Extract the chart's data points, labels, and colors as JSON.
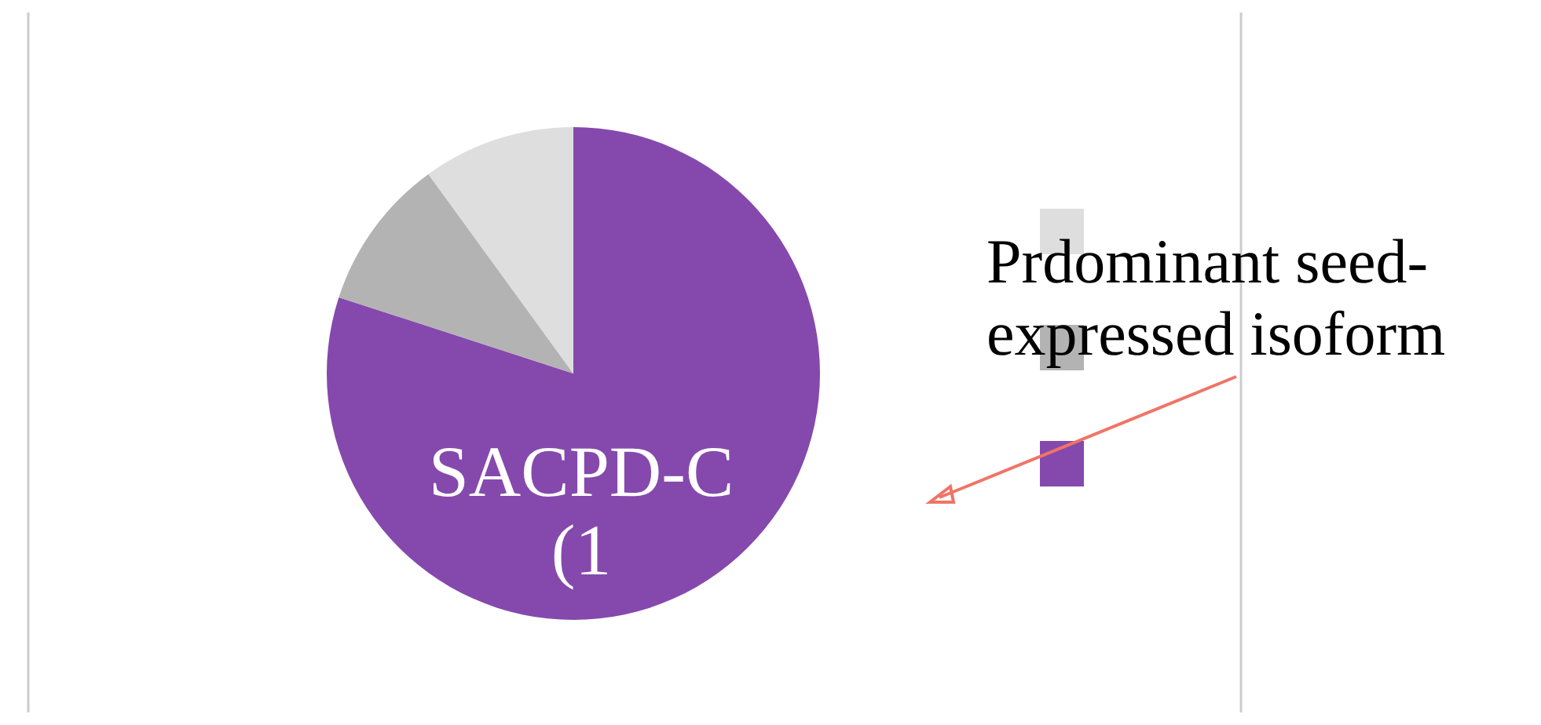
{
  "chart_data": {
    "type": "pie",
    "categories": [
      "SACPD-C (1",
      null,
      null
    ],
    "values": [
      80,
      10,
      10
    ],
    "colors": [
      "#8549ad",
      "#b3b3b3",
      "#dedede"
    ],
    "annotations": [
      "Prdominant seed-expressed isoform"
    ]
  }
}
